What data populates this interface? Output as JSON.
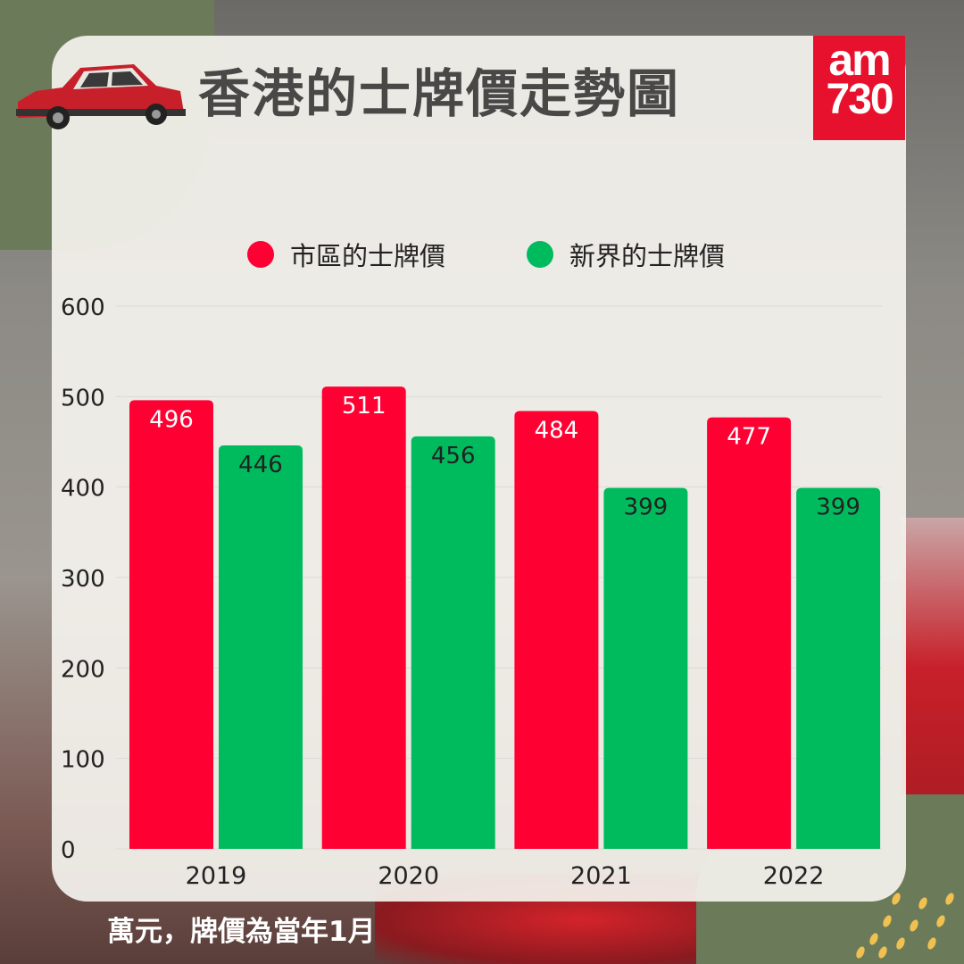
{
  "header": {
    "title": "香港的士牌價走勢圖",
    "logo_text": "am730"
  },
  "footer": {
    "note": "萬元，牌價為當年1月"
  },
  "chart_data": {
    "type": "bar",
    "categories": [
      "2019",
      "2020",
      "2021",
      "2022"
    ],
    "series": [
      {
        "name": "市區的士牌價",
        "color": "#ff0033",
        "values": [
          496,
          511,
          484,
          477
        ]
      },
      {
        "name": "新界的士牌價",
        "color": "#00bb5e",
        "values": [
          446,
          456,
          399,
          399
        ]
      }
    ],
    "yticks": [
      0,
      100,
      200,
      300,
      400,
      500,
      600
    ],
    "ylim": [
      0,
      600
    ],
    "grid": true,
    "legend": "top",
    "xlabel": "",
    "ylabel": ""
  }
}
